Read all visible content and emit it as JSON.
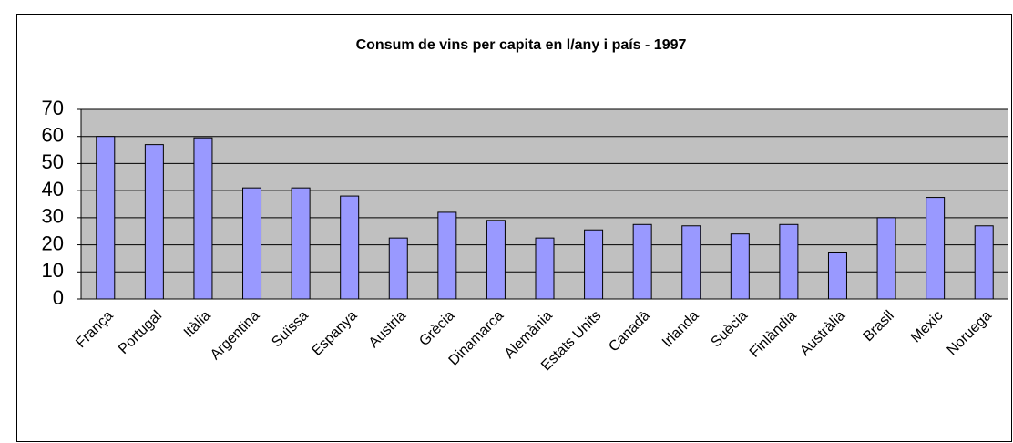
{
  "chart_data": {
    "type": "bar",
    "title": "Consum de vins per capita en l/any i país - 1997",
    "categories": [
      "França",
      "Portugal",
      "Itàlia",
      "Argentina",
      "Suïssa",
      "Espanya",
      "Austria",
      "Grècia",
      "Dinamarca",
      "Alemània",
      "Estats Units",
      "Canadà",
      "Irlanda",
      "Suècia",
      "Finlàndia",
      "Austràlia",
      "Brasil",
      "Mèxic",
      "Noruega"
    ],
    "values": [
      60,
      57,
      59.5,
      41,
      41,
      38,
      22.5,
      32,
      29,
      22.5,
      25.5,
      27.5,
      27,
      24,
      27.5,
      17,
      30,
      37.5,
      27
    ],
    "color": "#9999ff",
    "ylim": [
      0,
      70
    ],
    "yticks": [
      0,
      10,
      20,
      30,
      40,
      50,
      60,
      70
    ],
    "grid": true
  }
}
